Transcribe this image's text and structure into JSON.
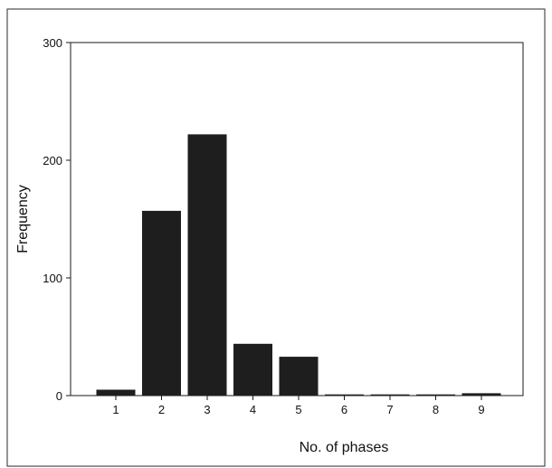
{
  "chart_data": {
    "type": "bar",
    "categories": [
      "1",
      "2",
      "3",
      "4",
      "5",
      "6",
      "7",
      "8",
      "9"
    ],
    "values": [
      5,
      157,
      222,
      44,
      33,
      1,
      1,
      1,
      2
    ],
    "xlabel": "No. of phases",
    "ylabel": "Frequency",
    "ylim": [
      0,
      300
    ],
    "yticks": [
      0,
      100,
      200,
      300
    ],
    "grid": false,
    "bar_color": "#1e1e1e"
  }
}
